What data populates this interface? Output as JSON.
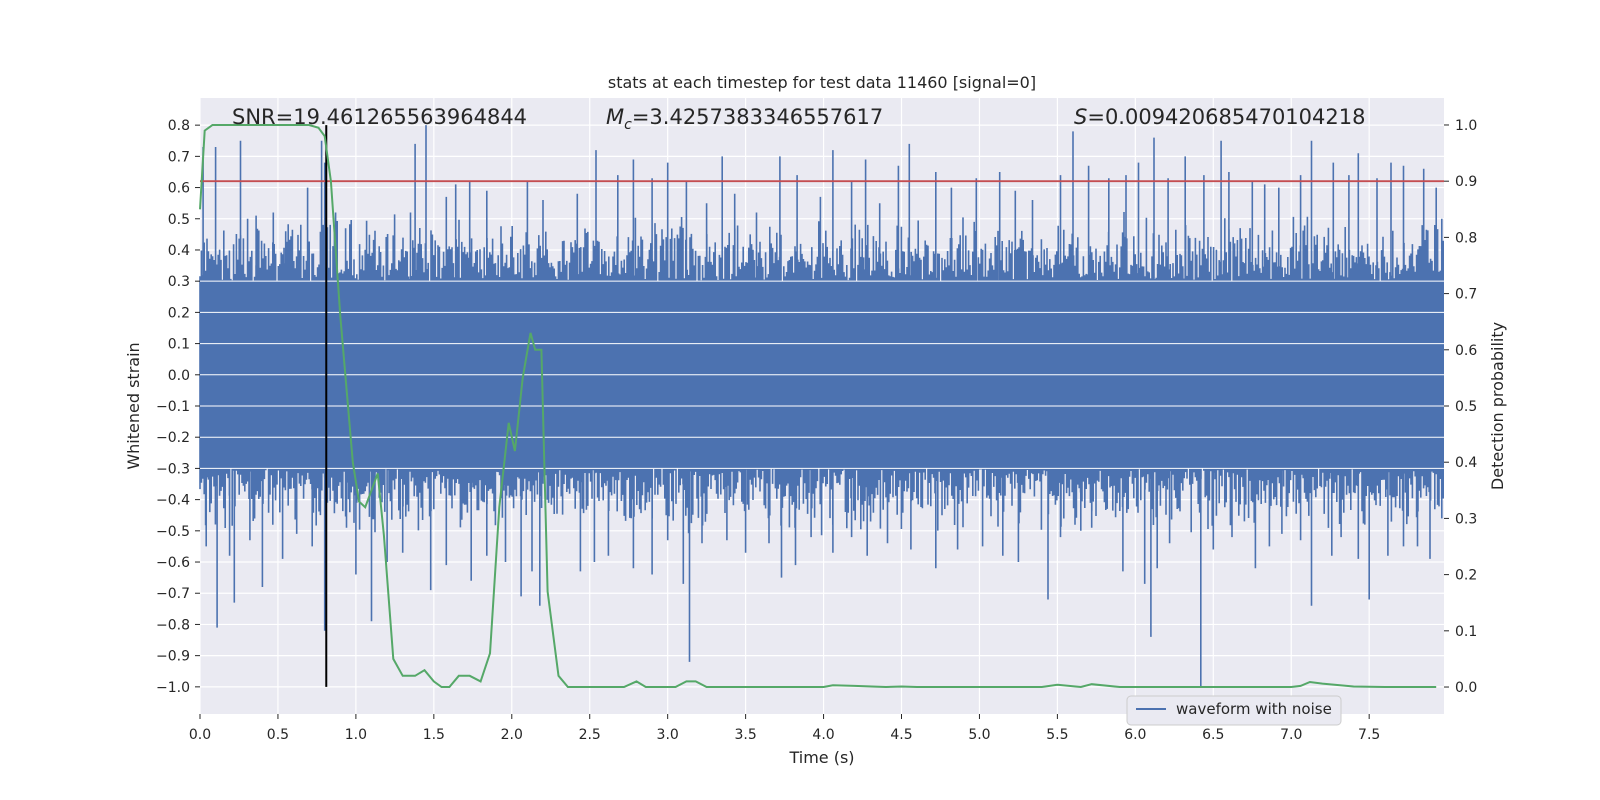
{
  "chart_data": {
    "type": "line",
    "title": "stats at each timestep for test data 11460 [signal=0]",
    "xlabel": "Time (s)",
    "ylabel": "Whitened strain",
    "y2label": "Detection probability",
    "xlim": [
      0.0,
      7.98
    ],
    "ylim": [
      -1.087,
      0.887
    ],
    "y2lim": [
      -0.048,
      1.048
    ],
    "xticks": [
      "0.0",
      "0.5",
      "1.0",
      "1.5",
      "2.0",
      "2.5",
      "3.0",
      "3.5",
      "4.0",
      "4.5",
      "5.0",
      "5.5",
      "6.0",
      "6.5",
      "7.0",
      "7.5"
    ],
    "yticks": [
      "0.8",
      "0.7",
      "0.6",
      "0.5",
      "0.4",
      "0.3",
      "0.2",
      "0.1",
      "0.0",
      "−0.1",
      "−0.2",
      "−0.3",
      "−0.4",
      "−0.5",
      "−0.6",
      "−0.7",
      "−0.8",
      "−0.9",
      "−1.0"
    ],
    "y2ticks": [
      "1.0",
      "0.9",
      "0.8",
      "0.7",
      "0.6",
      "0.5",
      "0.4",
      "0.3",
      "0.2",
      "0.1",
      "0.0"
    ],
    "grid": true,
    "legend": {
      "position": "bottom-right",
      "entries": [
        "waveform with noise"
      ]
    },
    "annotations": {
      "snr": "SNR=19.461265563964844",
      "mc": "=3.4257383346557617",
      "mc_symbol": "M",
      "mc_sub": "c",
      "s": "=0.009420685470104218",
      "s_symbol": "S"
    },
    "threshold_line": {
      "axis": "right",
      "value": 0.9
    },
    "marker_line": {
      "x": 0.81,
      "ymin": -1.0,
      "ymax": 0.8
    },
    "series": [
      {
        "name": "waveform with noise",
        "axis": "left",
        "noise_band": {
          "core_amplitude": 0.3,
          "typical_peak": 0.45
        },
        "spikes": [
          [
            0.02,
            0.73
          ],
          [
            0.1,
            0.73
          ],
          [
            0.26,
            0.75
          ],
          [
            0.36,
            0.51
          ],
          [
            0.47,
            0.52
          ],
          [
            0.55,
            0.46
          ],
          [
            0.69,
            0.6
          ],
          [
            0.78,
            0.75
          ],
          [
            0.8,
            0.68
          ],
          [
            0.87,
            0.52
          ],
          [
            1.35,
            0.52
          ],
          [
            1.38,
            0.74
          ],
          [
            1.45,
            0.8
          ],
          [
            1.58,
            0.57
          ],
          [
            1.64,
            0.61
          ],
          [
            1.73,
            0.62
          ],
          [
            1.84,
            0.59
          ],
          [
            2.1,
            0.62
          ],
          [
            2.2,
            0.56
          ],
          [
            2.42,
            0.58
          ],
          [
            2.54,
            0.72
          ],
          [
            2.68,
            0.64
          ],
          [
            2.78,
            0.69
          ],
          [
            2.9,
            0.63
          ],
          [
            3.0,
            0.68
          ],
          [
            3.12,
            0.62
          ],
          [
            3.25,
            0.55
          ],
          [
            3.35,
            0.7
          ],
          [
            3.43,
            0.58
          ],
          [
            3.57,
            0.52
          ],
          [
            3.72,
            0.7
          ],
          [
            3.83,
            0.64
          ],
          [
            3.98,
            0.57
          ],
          [
            4.06,
            0.72
          ],
          [
            4.18,
            0.62
          ],
          [
            4.27,
            0.69
          ],
          [
            4.36,
            0.55
          ],
          [
            4.48,
            0.67
          ],
          [
            4.55,
            0.74
          ],
          [
            4.72,
            0.65
          ],
          [
            4.82,
            0.6
          ],
          [
            4.98,
            0.63
          ],
          [
            5.13,
            0.65
          ],
          [
            5.23,
            0.59
          ],
          [
            5.34,
            0.56
          ],
          [
            5.52,
            0.64
          ],
          [
            5.6,
            0.78
          ],
          [
            5.7,
            0.67
          ],
          [
            5.83,
            0.63
          ],
          [
            5.94,
            0.64
          ],
          [
            6.02,
            0.68
          ],
          [
            6.12,
            0.76
          ],
          [
            6.21,
            0.63
          ],
          [
            6.32,
            0.7
          ],
          [
            6.44,
            0.64
          ],
          [
            6.55,
            0.75
          ],
          [
            6.6,
            0.65
          ],
          [
            6.75,
            0.62
          ],
          [
            6.83,
            0.61
          ],
          [
            6.92,
            0.6
          ],
          [
            7.06,
            0.64
          ],
          [
            7.13,
            0.75
          ],
          [
            7.27,
            0.68
          ],
          [
            7.37,
            0.64
          ],
          [
            7.43,
            0.71
          ],
          [
            7.55,
            0.63
          ],
          [
            7.64,
            0.68
          ],
          [
            7.72,
            0.67
          ],
          [
            7.85,
            0.66
          ],
          [
            7.93,
            0.6
          ],
          [
            0.04,
            -0.55
          ],
          [
            0.11,
            -0.81
          ],
          [
            0.19,
            -0.58
          ],
          [
            0.22,
            -0.73
          ],
          [
            0.32,
            -0.53
          ],
          [
            0.4,
            -0.68
          ],
          [
            0.53,
            -0.59
          ],
          [
            0.62,
            -0.51
          ],
          [
            0.72,
            -0.55
          ],
          [
            0.8,
            -0.82
          ],
          [
            0.94,
            -0.49
          ],
          [
            1.0,
            -0.64
          ],
          [
            1.1,
            -0.79
          ],
          [
            1.2,
            -0.6
          ],
          [
            1.3,
            -0.57
          ],
          [
            1.48,
            -0.69
          ],
          [
            1.58,
            -0.61
          ],
          [
            1.74,
            -0.66
          ],
          [
            1.84,
            -0.58
          ],
          [
            1.96,
            -0.6
          ],
          [
            2.06,
            -0.71
          ],
          [
            2.13,
            -0.63
          ],
          [
            2.18,
            -0.74
          ],
          [
            2.44,
            -0.63
          ],
          [
            2.53,
            -0.6
          ],
          [
            2.62,
            -0.58
          ],
          [
            2.78,
            -0.62
          ],
          [
            2.9,
            -0.64
          ],
          [
            3.0,
            -0.53
          ],
          [
            3.1,
            -0.67
          ],
          [
            3.14,
            -0.92
          ],
          [
            3.22,
            -0.54
          ],
          [
            3.38,
            -0.53
          ],
          [
            3.5,
            -0.57
          ],
          [
            3.65,
            -0.54
          ],
          [
            3.73,
            -0.65
          ],
          [
            3.82,
            -0.61
          ],
          [
            3.92,
            -0.52
          ],
          [
            4.06,
            -0.57
          ],
          [
            4.18,
            -0.52
          ],
          [
            4.28,
            -0.58
          ],
          [
            4.41,
            -0.54
          ],
          [
            4.56,
            -0.56
          ],
          [
            4.72,
            -0.62
          ],
          [
            4.86,
            -0.56
          ],
          [
            5.02,
            -0.55
          ],
          [
            5.15,
            -0.58
          ],
          [
            5.25,
            -0.6
          ],
          [
            5.44,
            -0.72
          ],
          [
            5.52,
            -0.52
          ],
          [
            5.65,
            -0.5
          ],
          [
            5.72,
            -0.49
          ],
          [
            5.92,
            -0.63
          ],
          [
            6.06,
            -0.67
          ],
          [
            6.1,
            -0.84
          ],
          [
            6.14,
            -0.62
          ],
          [
            6.22,
            -0.54
          ],
          [
            6.42,
            -1.0
          ],
          [
            6.5,
            -0.56
          ],
          [
            6.62,
            -0.52
          ],
          [
            6.77,
            -0.62
          ],
          [
            6.86,
            -0.55
          ],
          [
            6.94,
            -0.51
          ],
          [
            7.06,
            -0.53
          ],
          [
            7.13,
            -0.74
          ],
          [
            7.26,
            -0.58
          ],
          [
            7.32,
            -0.52
          ],
          [
            7.43,
            -0.59
          ],
          [
            7.5,
            -0.72
          ],
          [
            7.62,
            -0.58
          ],
          [
            7.72,
            -0.55
          ],
          [
            7.81,
            -0.55
          ],
          [
            7.89,
            -0.59
          ]
        ],
        "color": "#4c72b0"
      },
      {
        "name": "",
        "axis": "right",
        "color": "#55a868",
        "x": [
          0.0,
          0.03,
          0.08,
          0.12,
          0.2,
          0.3,
          0.5,
          0.7,
          0.76,
          0.8,
          0.84,
          0.9,
          0.98,
          1.02,
          1.06,
          1.1,
          1.14,
          1.18,
          1.24,
          1.3,
          1.38,
          1.44,
          1.5,
          1.55,
          1.6,
          1.66,
          1.73,
          1.8,
          1.86,
          1.92,
          1.98,
          2.02,
          2.07,
          2.12,
          2.15,
          2.19,
          2.23,
          2.3,
          2.36,
          2.45,
          2.6,
          2.72,
          2.8,
          2.86,
          2.95,
          3.05,
          3.12,
          3.18,
          3.25,
          3.4,
          3.6,
          3.8,
          4.0,
          4.06,
          4.2,
          4.4,
          4.5,
          4.6,
          4.8,
          5.0,
          5.2,
          5.4,
          5.5,
          5.65,
          5.72,
          5.9,
          6.1,
          6.4,
          6.8,
          7.0,
          7.06,
          7.12,
          7.2,
          7.4,
          7.6,
          7.76,
          7.93
        ],
        "y": [
          0.85,
          0.99,
          1.0,
          1.0,
          1.0,
          1.0,
          1.0,
          1.0,
          0.995,
          0.98,
          0.9,
          0.66,
          0.4,
          0.33,
          0.32,
          0.35,
          0.38,
          0.27,
          0.05,
          0.02,
          0.02,
          0.03,
          0.01,
          0.0,
          0.0,
          0.02,
          0.02,
          0.01,
          0.06,
          0.32,
          0.47,
          0.42,
          0.55,
          0.63,
          0.6,
          0.6,
          0.17,
          0.02,
          0.0,
          0.0,
          0.0,
          0.0,
          0.01,
          0.0,
          0.0,
          0.0,
          0.01,
          0.01,
          0.0,
          0.0,
          0.0,
          0.0,
          0.0,
          0.003,
          0.002,
          0.0,
          0.001,
          0.0,
          0.0,
          0.0,
          0.0,
          0.0,
          0.004,
          0.0,
          0.005,
          0.0,
          0.0,
          0.0,
          0.0,
          0.0,
          0.002,
          0.009,
          0.006,
          0.001,
          0.0,
          0.0,
          0.0
        ]
      }
    ]
  }
}
